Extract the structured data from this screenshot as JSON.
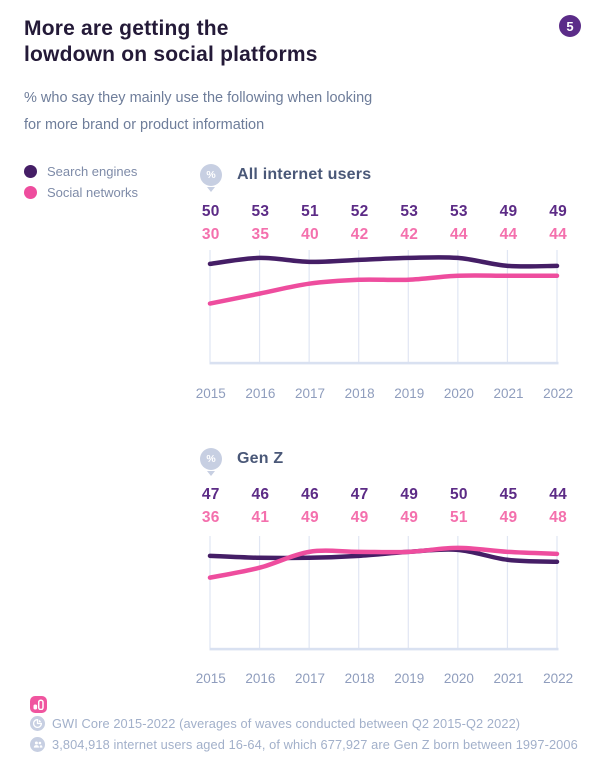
{
  "page": {
    "badge": "5",
    "title": [
      "More are getting the",
      "lowdown on social platforms"
    ],
    "subtitle": [
      "% who say they mainly use the following when looking",
      "for more brand or product information"
    ]
  },
  "legend": {
    "items": [
      {
        "label": "Search engines",
        "color": "#451e66"
      },
      {
        "label": "Social networks",
        "color": "#ee4d9e"
      }
    ]
  },
  "chart_data": [
    {
      "type": "line",
      "title": "All internet users",
      "unit": "%",
      "x": [
        "2015",
        "2016",
        "2017",
        "2018",
        "2019",
        "2020",
        "2021",
        "2022"
      ],
      "series": [
        {
          "name": "Search engines",
          "color": "#451e66",
          "label_color": "#5c2b86",
          "values": [
            50,
            53,
            51,
            52,
            53,
            53,
            49,
            49
          ]
        },
        {
          "name": "Social networks",
          "color": "#ee4d9e",
          "label_color": "#f470ad",
          "values": [
            30,
            35,
            40,
            42,
            42,
            44,
            44,
            44
          ]
        }
      ],
      "ylim": [
        0,
        57
      ],
      "grid": "vertical-only",
      "data_labels": "above-plot",
      "legend_position": "left-of-charts"
    },
    {
      "type": "line",
      "title": "Gen Z",
      "unit": "%",
      "x": [
        "2015",
        "2016",
        "2017",
        "2018",
        "2019",
        "2020",
        "2021",
        "2022"
      ],
      "series": [
        {
          "name": "Search engines",
          "color": "#451e66",
          "label_color": "#5c2b86",
          "values": [
            47,
            46,
            46,
            47,
            49,
            50,
            45,
            44
          ]
        },
        {
          "name": "Social networks",
          "color": "#ee4d9e",
          "label_color": "#f470ad",
          "values": [
            36,
            41,
            49,
            49,
            49,
            51,
            49,
            48
          ]
        }
      ],
      "ylim": [
        0,
        57
      ],
      "grid": "vertical-only",
      "data_labels": "above-plot",
      "legend_position": "left-of-charts"
    }
  ],
  "footer": {
    "lines": [
      {
        "icon": "pie-chart-icon",
        "text": "GWI Core 2015-2022 (averages of waves conducted between Q2 2015-Q2 2022)"
      },
      {
        "icon": "people-icon",
        "text": "3,804,918 internet users aged 16-64, of which 677,927 are Gen Z born between 1997-2006"
      }
    ]
  },
  "colors": {
    "title": "#241a38",
    "subtitle": "#6e7d9a",
    "chart_title": "#4a5878",
    "axis_label": "#8f9dbd",
    "gridline": "#e0e6f3",
    "axis_line": "#d9e1f1",
    "badge_bg": "#5b2c88",
    "footer_text": "#a2b0ca",
    "footer_icon_bg": "#c7cfe2",
    "footer_chart_icon_bg": "#f0559f"
  }
}
